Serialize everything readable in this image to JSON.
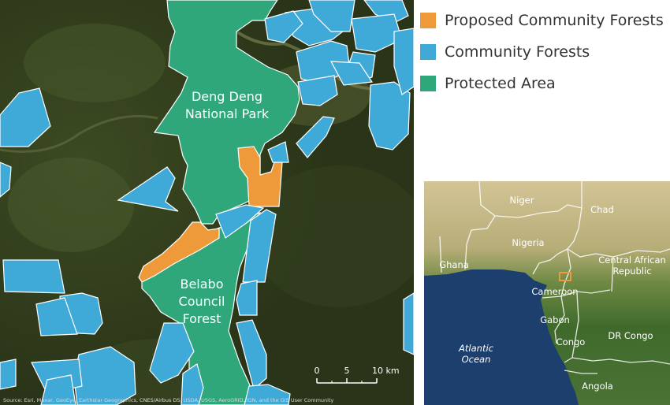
{
  "legend": {
    "items": [
      {
        "label": "Proposed Community Forests",
        "color": "#ee9a3a"
      },
      {
        "label": "Community Forests",
        "color": "#3fa9d8"
      },
      {
        "label": "Protected Area",
        "color": "#2fa77a"
      }
    ]
  },
  "main_map": {
    "labels": {
      "deng_deng_1": "Deng Deng",
      "deng_deng_2": "National Park",
      "belabo_1": "Belabo",
      "belabo_2": "Council",
      "belabo_3": "Forest"
    },
    "scale_bar": {
      "tick_0": "0",
      "tick_1": "5",
      "tick_2": "10 km"
    },
    "attribution": "Source: Esri, Maxar, GeoEye, Earthstar Geographics, CNES/Airbus DS, USDA, USGS, AeroGRID, IGN, and the GIS User Community"
  },
  "inset_map": {
    "labels": {
      "niger": "Niger",
      "chad": "Chad",
      "nigeria": "Nigeria",
      "ghana": "Ghana",
      "car_1": "Central African",
      "car_2": "Republic",
      "cameroon": "Cameroon",
      "gabon": "Gabon",
      "congo": "Congo",
      "dr_congo": "DR Congo",
      "atlantic_1": "Atlantic",
      "atlantic_2": "Ocean",
      "angola": "Angola"
    },
    "colors": {
      "land_north": "#c9b98a",
      "land_south": "#3f6a2c",
      "ocean": "#1d3f6e",
      "highlight": "#ee9a3a"
    }
  }
}
